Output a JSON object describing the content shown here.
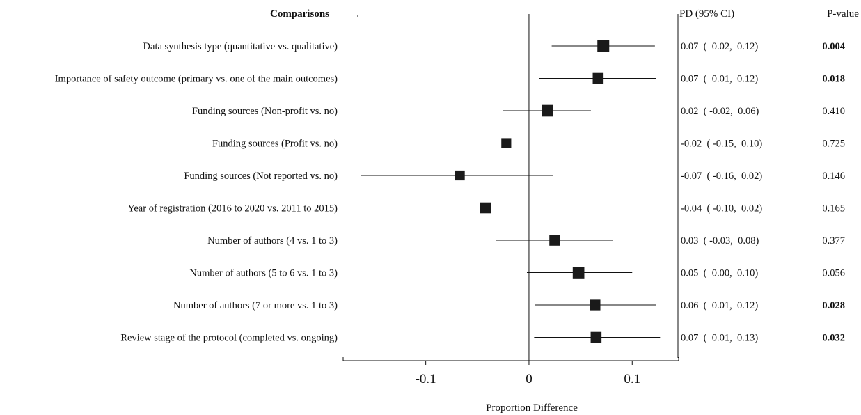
{
  "chart_data": {
    "type": "forest",
    "headers": {
      "comparisons": "Comparisons",
      "estimate": "PD (95% CI)",
      "pvalue": "P-value"
    },
    "xlabel": "Proportion Difference",
    "xlim": [
      -0.18,
      0.145
    ],
    "null_line": 0,
    "ticks": [
      {
        "value": -0.1,
        "label": "-0.1"
      },
      {
        "value": 0,
        "label": "0"
      },
      {
        "value": 0.1,
        "label": "0.1"
      }
    ],
    "rows": [
      {
        "label": "Data synthesis type (quantitative vs. qualitative)",
        "pd": 0.072,
        "lo": 0.022,
        "hi": 0.122,
        "weight": 1.0,
        "ci_text": "0.07  (  0.02,  0.12)",
        "p": "0.004",
        "significant": true
      },
      {
        "label": "Importance of safety outcome (primary vs. one of the main outcomes)",
        "pd": 0.067,
        "lo": 0.01,
        "hi": 0.123,
        "weight": 0.8,
        "ci_text": "0.07  (  0.01,  0.12)",
        "p": "0.018",
        "significant": true
      },
      {
        "label": "Funding sources (Non-profit vs. no)",
        "pd": 0.018,
        "lo": -0.025,
        "hi": 0.06,
        "weight": 0.95,
        "ci_text": "0.02  ( -0.02,  0.06)",
        "p": "0.410",
        "significant": false
      },
      {
        "label": "Funding sources (Profit vs. no)",
        "pd": -0.022,
        "lo": -0.147,
        "hi": 0.101,
        "weight": 0.6,
        "ci_text": "-0.02  ( -0.15,  0.10)",
        "p": "0.725",
        "significant": false
      },
      {
        "label": "Funding sources (Not reported vs. no)",
        "pd": -0.067,
        "lo": -0.163,
        "hi": 0.023,
        "weight": 0.6,
        "ci_text": "-0.07  ( -0.16,  0.02)",
        "p": "0.146",
        "significant": false
      },
      {
        "label": "Year of registration (2016 to 2020 vs. 2011 to 2015)",
        "pd": -0.042,
        "lo": -0.098,
        "hi": 0.016,
        "weight": 0.8,
        "ci_text": "-0.04  ( -0.10,  0.02)",
        "p": "0.165",
        "significant": false
      },
      {
        "label": "Number of authors (4 vs. 1 to 3)",
        "pd": 0.025,
        "lo": -0.032,
        "hi": 0.081,
        "weight": 0.8,
        "ci_text": "0.03  ( -0.03,  0.08)",
        "p": "0.377",
        "significant": false
      },
      {
        "label": "Number of authors (5 to 6 vs. 1 to 3)",
        "pd": 0.048,
        "lo": -0.002,
        "hi": 0.1,
        "weight": 0.95,
        "ci_text": "0.05  (  0.00,  0.10)",
        "p": "0.056",
        "significant": false
      },
      {
        "label": "Number of authors (7 or more vs. 1 to 3)",
        "pd": 0.064,
        "lo": 0.006,
        "hi": 0.123,
        "weight": 0.75,
        "ci_text": "0.06  (  0.01,  0.12)",
        "p": "0.028",
        "significant": true
      },
      {
        "label": "Review stage of the protocol (completed vs. ongoing)",
        "pd": 0.065,
        "lo": 0.005,
        "hi": 0.127,
        "weight": 0.8,
        "ci_text": "0.07  (  0.01,  0.13)",
        "p": "0.032",
        "significant": true
      }
    ]
  }
}
